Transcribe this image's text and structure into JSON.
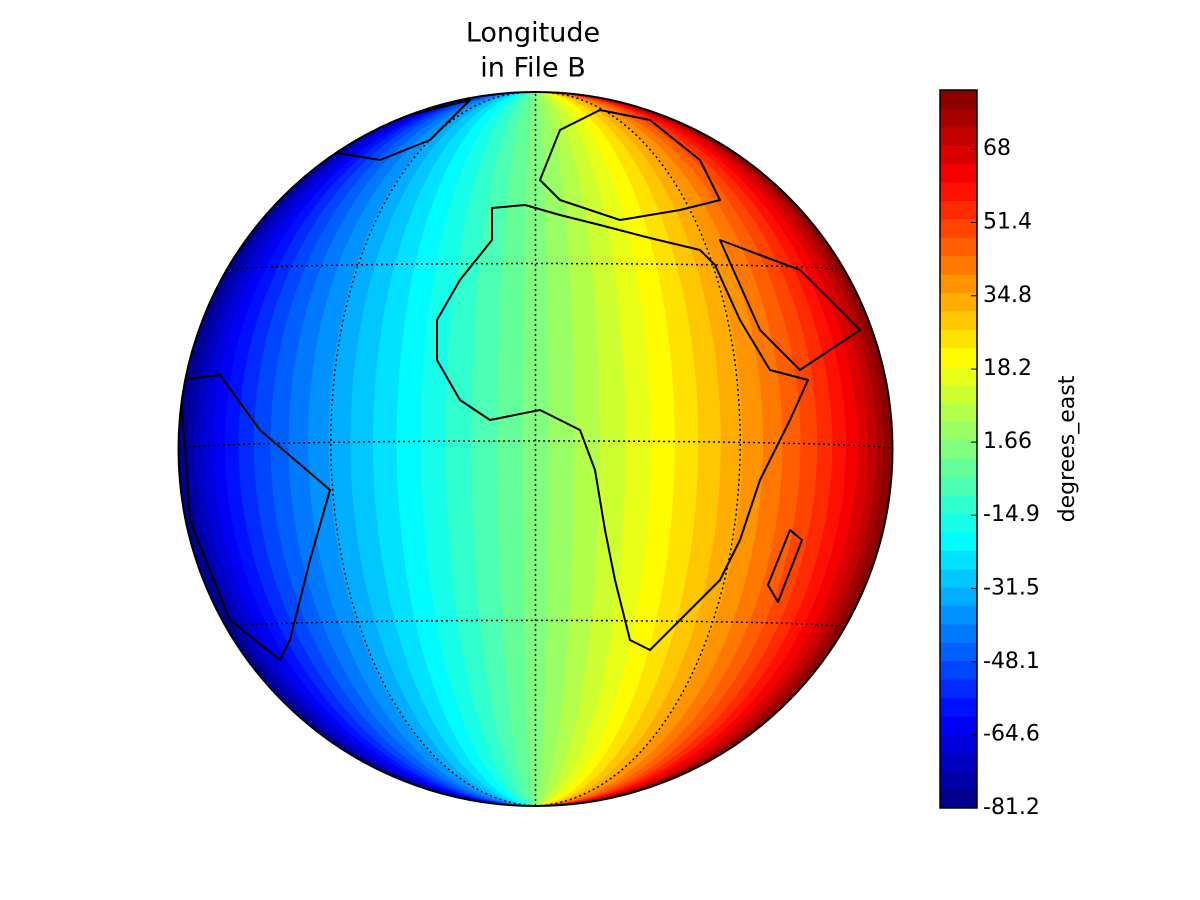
{
  "chart_data": {
    "type": "orthographic-map",
    "title": [
      "Longitude",
      "in File B"
    ],
    "colorbar_label": "degrees_east",
    "colormap": "jet",
    "clim": [
      -81.2,
      81.4
    ],
    "levels": 39,
    "cticks": [
      -81.2,
      -64.6,
      -48.1,
      -31.5,
      -14.9,
      1.66,
      18.2,
      34.8,
      51.4,
      68
    ],
    "parallels": [
      -30,
      0,
      30
    ],
    "meridians": [
      -35,
      0,
      35
    ]
  }
}
